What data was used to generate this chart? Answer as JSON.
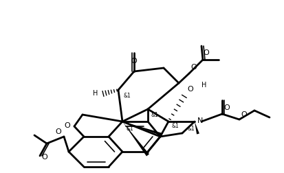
{
  "bg": "#ffffff",
  "lc": "#000000",
  "fig_w": 4.13,
  "fig_h": 2.53,
  "dpi": 100,
  "xlim": [
    0,
    413
  ],
  "ylim": [
    0,
    253
  ]
}
